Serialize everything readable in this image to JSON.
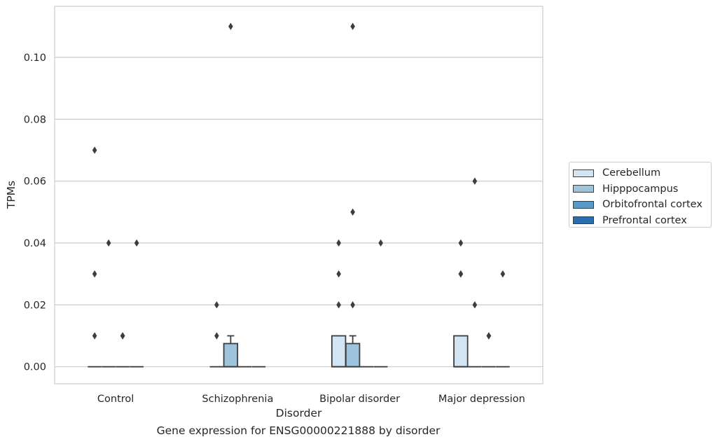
{
  "chart_data": {
    "type": "box",
    "xlabel": "Disorder",
    "ylabel": "TPMs",
    "caption": "Gene expression for ENSG00000221888 by disorder",
    "ylim": [
      -0.0055,
      0.1165
    ],
    "yticks": [
      "0.00",
      "0.02",
      "0.04",
      "0.06",
      "0.08",
      "0.10"
    ],
    "grid": true,
    "legend_position": "right",
    "categories": [
      "Control",
      "Schizophrenia",
      "Bipolar disorder",
      "Major depression"
    ],
    "series": [
      {
        "name": "Cerebellum",
        "color": "#d3e4f3",
        "boxes": [
          {
            "q1": 0,
            "median": 0,
            "q3": 0,
            "whisker_low": 0,
            "whisker_high": 0,
            "outliers": [
              0.07,
              0.03,
              0.01
            ]
          },
          {
            "q1": 0,
            "median": 0,
            "q3": 0,
            "whisker_low": 0,
            "whisker_high": 0,
            "outliers": []
          },
          {
            "q1": 0,
            "median": 0,
            "q3": 0.01,
            "whisker_low": 0,
            "whisker_high": 0.01,
            "outliers": [
              0.04,
              0.03
            ]
          },
          {
            "q1": 0,
            "median": 0,
            "q3": 0.01,
            "whisker_low": 0,
            "whisker_high": 0.01,
            "outliers": [
              0.04,
              0.03,
              0.03
            ]
          }
        ]
      },
      {
        "name": "Hipppocampus",
        "color": "#9dc4dc",
        "boxes": [
          {
            "q1": 0,
            "median": 0,
            "q3": 0,
            "whisker_low": 0,
            "whisker_high": 0,
            "outliers": [
              0.04
            ]
          },
          {
            "q1": 0,
            "median": 0,
            "q3": 0.0075,
            "whisker_low": 0,
            "whisker_high": 0.01,
            "outliers": [
              0.11
            ]
          },
          {
            "q1": 0,
            "median": 0,
            "q3": 0.0075,
            "whisker_low": 0,
            "whisker_high": 0.01,
            "outliers": [
              0.11,
              0.05,
              0.02
            ]
          },
          {
            "q1": 0,
            "median": 0,
            "q3": 0,
            "whisker_low": 0,
            "whisker_high": 0,
            "outliers": [
              0.06,
              0.02
            ]
          }
        ]
      },
      {
        "name": "Orbitofrontal cortex",
        "color": "#5a9ac8",
        "boxes": [
          {
            "q1": 0,
            "median": 0,
            "q3": 0,
            "whisker_low": 0,
            "whisker_high": 0,
            "outliers": [
              0.01,
              0.01
            ]
          },
          {
            "q1": 0,
            "median": 0,
            "q3": 0,
            "whisker_low": 0,
            "whisker_high": 0,
            "outliers": []
          },
          {
            "q1": 0,
            "median": 0,
            "q3": 0,
            "whisker_low": 0,
            "whisker_high": 0,
            "outliers": []
          },
          {
            "q1": 0,
            "median": 0,
            "q3": 0,
            "whisker_low": 0,
            "whisker_high": 0,
            "outliers": [
              0.01,
              0.01
            ]
          }
        ]
      },
      {
        "name": "Prefrontal cortex",
        "color": "#2a6ead",
        "boxes": [
          {
            "q1": 0,
            "median": 0,
            "q3": 0,
            "whisker_low": 0,
            "whisker_high": 0,
            "outliers": [
              0.04
            ]
          },
          {
            "q1": 0,
            "median": 0,
            "q3": 0,
            "whisker_low": 0,
            "whisker_high": 0,
            "outliers": []
          },
          {
            "q1": 0,
            "median": 0,
            "q3": 0,
            "whisker_low": 0,
            "whisker_high": 0,
            "outliers": [
              0.04
            ]
          },
          {
            "q1": 0,
            "median": 0,
            "q3": 0,
            "whisker_low": 0,
            "whisker_high": 0,
            "outliers": [
              0.03
            ]
          }
        ]
      }
    ],
    "extra_outliers": [
      {
        "category": 1,
        "offset": -1.5,
        "value": 0.02
      },
      {
        "category": 1,
        "offset": -1.5,
        "value": 0.01
      },
      {
        "category": 2,
        "offset": -1.5,
        "value": 0.02
      }
    ]
  }
}
